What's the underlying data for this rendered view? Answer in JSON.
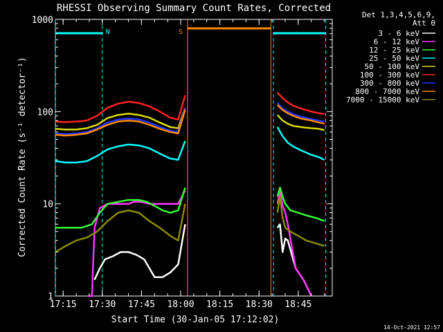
{
  "chart_data": {
    "type": "line",
    "title": "RHESSI Observing Summary Count Rates, Corrected",
    "xlabel": "Start Time (30-Jan-05 17:12:02)",
    "ylabel": "Corrected Count Rate (s⁻¹ detector⁻¹)",
    "y_scale": "log",
    "ylim": [
      1,
      1000
    ],
    "xlim_minutes": [
      0,
      106
    ],
    "x_tick_labels": [
      "17:15",
      "17:30",
      "17:45",
      "18:00",
      "18:15",
      "18:30",
      "18:45"
    ],
    "x_tick_minutes": [
      2.97,
      17.97,
      32.97,
      47.97,
      62.97,
      77.97,
      92.97
    ],
    "y_tick_labels": [
      "1",
      "10",
      "100",
      "1000"
    ],
    "y_tick_values": [
      1,
      10,
      100,
      1000
    ],
    "legend": {
      "header": [
        "Det 1,3,4,5,6,9,",
        "Att 0"
      ],
      "position": "right"
    },
    "series": [
      {
        "name": "3 - 6 keV",
        "color": "#ffffff",
        "segments": [
          {
            "x": [
              15,
              17,
              19,
              22,
              25,
              28,
              31,
              34,
              38,
              41,
              44,
              47,
              49.7
            ],
            "y": [
              1.5,
              2.0,
              2.5,
              2.7,
              3.0,
              3.0,
              2.8,
              2.5,
              1.6,
              1.6,
              1.8,
              2.2,
              6.0
            ]
          },
          {
            "x": [
              85,
              86,
              87,
              88,
              89,
              92,
              95,
              98
            ],
            "y": [
              5.5,
              6.0,
              3.0,
              4.2,
              4.0,
              2.0,
              1.5,
              1.0
            ]
          }
        ]
      },
      {
        "name": "6 - 12 keV",
        "color": "#ff33ff",
        "segments": [
          {
            "x": [
              12.5,
              14,
              15,
              17,
              20,
              24,
              28,
              30,
              33,
              36,
              40,
              44,
              47,
              49.7
            ],
            "y": [
              1.0,
              1.0,
              5.5,
              9.0,
              10.0,
              10.0,
              10.0,
              10.5,
              10.5,
              10.0,
              10.0,
              10.0,
              10.0,
              14.0
            ]
          },
          {
            "x": [
              85,
              86,
              87,
              88,
              89,
              92,
              95,
              98
            ],
            "y": [
              10.0,
              14.0,
              9.5,
              8.0,
              6.0,
              2.0,
              1.5,
              1.0
            ]
          }
        ]
      },
      {
        "name": "12 - 25 keV",
        "color": "#33ff33",
        "segments": [
          {
            "x": [
              0,
              5,
              10,
              14,
              17,
              20,
              24,
              28,
              32,
              35,
              38,
              41,
              44,
              47,
              49.7
            ],
            "y": [
              5.5,
              5.5,
              5.5,
              6.0,
              8.0,
              10.0,
              10.5,
              11.0,
              11.0,
              10.5,
              9.5,
              8.5,
              8.0,
              8.5,
              15.0
            ]
          },
          {
            "x": [
              85,
              86,
              87,
              88,
              90,
              93,
              96,
              100,
              103
            ],
            "y": [
              12.0,
              15.0,
              12.0,
              10.0,
              8.5,
              8.0,
              7.5,
              7.0,
              6.5
            ]
          }
        ]
      },
      {
        "name": "25 - 50 keV",
        "color": "#00ffff",
        "segments": [
          {
            "x": [
              0,
              4,
              8,
              12,
              16,
              20,
              24,
              28,
              32,
              36,
              40,
              44,
              47,
              49.7
            ],
            "y": [
              29,
              28,
              28,
              29,
              33,
              39,
              42,
              44,
              43,
              40,
              35,
              31,
              30,
              48
            ]
          },
          {
            "x": [
              85,
              87,
              89,
              91,
              94,
              98,
              101,
              103
            ],
            "y": [
              68,
              54,
              46,
              42,
              38,
              34,
              32,
              30
            ]
          }
        ]
      },
      {
        "name": "50 - 100 keV",
        "color": "#dddd00",
        "segments": [
          {
            "x": [
              0,
              4,
              8,
              12,
              16,
              20,
              24,
              28,
              32,
              36,
              40,
              44,
              47,
              49.7
            ],
            "y": [
              65,
              64,
              64,
              66,
              72,
              85,
              92,
              95,
              92,
              86,
              76,
              68,
              66,
              110
            ]
          },
          {
            "x": [
              85,
              87,
              89,
              91,
              94,
              98,
              101,
              103
            ],
            "y": [
              92,
              80,
              74,
              70,
              68,
              66,
              65,
              63
            ]
          }
        ]
      },
      {
        "name": "100 - 300 keV",
        "color": "#ff2222",
        "segments": [
          {
            "x": [
              0,
              4,
              8,
              12,
              16,
              20,
              24,
              28,
              32,
              36,
              40,
              44,
              47,
              49.7
            ],
            "y": [
              78,
              77,
              78,
              80,
              90,
              110,
              122,
              128,
              124,
              114,
              100,
              86,
              82,
              150
            ]
          },
          {
            "x": [
              85,
              87,
              89,
              91,
              94,
              98,
              101,
              103
            ],
            "y": [
              160,
              140,
              126,
              116,
              108,
              100,
              96,
              94
            ]
          }
        ]
      },
      {
        "name": "300 - 800 keV",
        "color": "#2233ff",
        "segments": [
          {
            "x": [
              0,
              4,
              8,
              12,
              16,
              20,
              24,
              28,
              32,
              36,
              40,
              44,
              47,
              49.7
            ],
            "y": [
              58,
              57,
              58,
              60,
              66,
              76,
              82,
              84,
              82,
              76,
              68,
              62,
              60,
              110
            ]
          },
          {
            "x": [
              85,
              87,
              89,
              91,
              94,
              98,
              101,
              103
            ],
            "y": [
              125,
              108,
              100,
              94,
              88,
              83,
              80,
              78
            ]
          }
        ]
      },
      {
        "name": "800 - 7000 keV",
        "color": "#ff8c00",
        "segments": [
          {
            "x": [
              0,
              4,
              8,
              12,
              16,
              20,
              24,
              28,
              32,
              36,
              40,
              44,
              47,
              49.7
            ],
            "y": [
              56,
              55,
              56,
              58,
              64,
              72,
              78,
              80,
              78,
              72,
              65,
              60,
              58,
              105
            ]
          },
          {
            "x": [
              85,
              87,
              89,
              91,
              94,
              98,
              101,
              103
            ],
            "y": [
              118,
              104,
              96,
              90,
              84,
              80,
              76,
              74
            ]
          }
        ]
      },
      {
        "name": "7000 - 15000 keV",
        "color": "#8b8b00",
        "segments": [
          {
            "x": [
              0,
              4,
              8,
              12,
              16,
              20,
              24,
              28,
              32,
              36,
              40,
              44,
              47,
              49.7
            ],
            "y": [
              3.0,
              3.5,
              4.0,
              4.3,
              5.0,
              6.5,
              8.0,
              8.5,
              8.0,
              6.5,
              5.5,
              4.5,
              4.0,
              10.0
            ]
          },
          {
            "x": [
              85,
              86,
              87,
              88,
              90,
              93,
              96,
              100,
              103
            ],
            "y": [
              8.0,
              12.0,
              7.0,
              5.5,
              5.0,
              4.5,
              4.0,
              3.7,
              3.5
            ]
          }
        ]
      }
    ],
    "annotations": [
      {
        "label": "N",
        "color": "#00ffff",
        "at_minute": 17.97
      },
      {
        "label": "S",
        "color": "#ff8c00",
        "at_minute": 50.6
      }
    ],
    "night_intervals_minutes": [
      [
        0,
        17.97
      ],
      [
        83.5,
        103.5
      ]
    ],
    "saa_interval_minutes": [
      50.6,
      82.5
    ],
    "timestamp": "14-Oct-2021 12:57"
  }
}
